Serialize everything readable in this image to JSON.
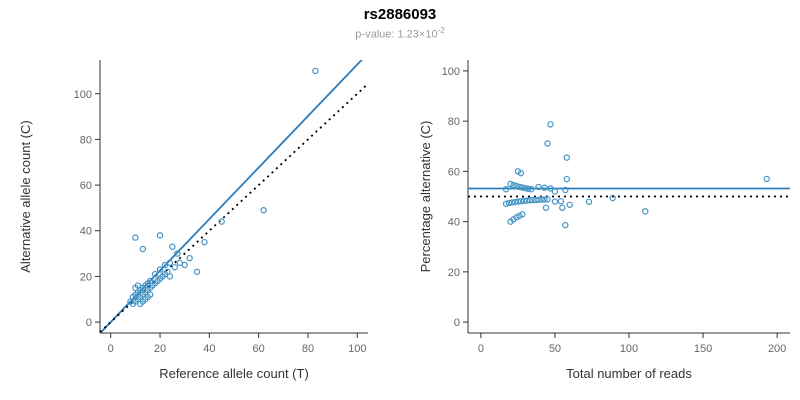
{
  "header": {
    "title": "rs2886093",
    "subtitle_base": "p-value: 1.23×10",
    "subtitle_exponent": "-2"
  },
  "chart_data": [
    {
      "type": "scatter",
      "name": "allele-counts",
      "xlabel": "Reference allele count (T)",
      "ylabel": "Alternative allele count (C)",
      "xlim": [
        0,
        100
      ],
      "ylim": [
        0,
        110
      ],
      "xticks": [
        0,
        20,
        40,
        60,
        80,
        100
      ],
      "yticks": [
        0,
        20,
        40,
        60,
        80,
        100
      ],
      "point_color": "#4393c3",
      "grid": false,
      "legend": "none",
      "points": [
        [
          8,
          9
        ],
        [
          9,
          11
        ],
        [
          9,
          8
        ],
        [
          10,
          9
        ],
        [
          10,
          12
        ],
        [
          10,
          15
        ],
        [
          10,
          37
        ],
        [
          11,
          10
        ],
        [
          11,
          13
        ],
        [
          11,
          16
        ],
        [
          12,
          8
        ],
        [
          12,
          11
        ],
        [
          12,
          14
        ],
        [
          13,
          9
        ],
        [
          13,
          12
        ],
        [
          13,
          15
        ],
        [
          13,
          32
        ],
        [
          14,
          10
        ],
        [
          14,
          13
        ],
        [
          14,
          16
        ],
        [
          15,
          11
        ],
        [
          15,
          14
        ],
        [
          15,
          17
        ],
        [
          16,
          12
        ],
        [
          16,
          15
        ],
        [
          16,
          18
        ],
        [
          17,
          16
        ],
        [
          18,
          17
        ],
        [
          18,
          21
        ],
        [
          19,
          18
        ],
        [
          20,
          19
        ],
        [
          20,
          23
        ],
        [
          20,
          38
        ],
        [
          21,
          20
        ],
        [
          22,
          21
        ],
        [
          22,
          25
        ],
        [
          23,
          22
        ],
        [
          24,
          20
        ],
        [
          24,
          26
        ],
        [
          25,
          33
        ],
        [
          26,
          24
        ],
        [
          27,
          30
        ],
        [
          28,
          26
        ],
        [
          30,
          25
        ],
        [
          32,
          28
        ],
        [
          35,
          22
        ],
        [
          38,
          35
        ],
        [
          45,
          44
        ],
        [
          62,
          49
        ],
        [
          83,
          110
        ]
      ],
      "lines": [
        {
          "name": "regression",
          "style": "solid",
          "color": "#2b7bba",
          "slope": 1.128,
          "intercept": 0
        },
        {
          "name": "identity",
          "style": "dotted",
          "color": "#000000",
          "slope": 1,
          "intercept": 0
        }
      ]
    },
    {
      "type": "scatter",
      "name": "percentage-alternative",
      "xlabel": "Total number of reads",
      "ylabel": "Percentage alternative (C)",
      "xlim": [
        0,
        200
      ],
      "ylim": [
        0,
        100
      ],
      "xticks": [
        0,
        50,
        100,
        150,
        200
      ],
      "yticks": [
        0,
        20,
        40,
        60,
        80,
        100
      ],
      "point_color": "#4393c3",
      "grid": false,
      "legend": "none",
      "points": [
        [
          17,
          52.9
        ],
        [
          20,
          55.0
        ],
        [
          17,
          47.1
        ],
        [
          19,
          47.4
        ],
        [
          22,
          54.5
        ],
        [
          25,
          60.0
        ],
        [
          47,
          78.7
        ],
        [
          21,
          47.6
        ],
        [
          24,
          54.2
        ],
        [
          27,
          59.3
        ],
        [
          20,
          40.0
        ],
        [
          23,
          47.8
        ],
        [
          26,
          53.8
        ],
        [
          22,
          40.9
        ],
        [
          25,
          48.0
        ],
        [
          28,
          53.6
        ],
        [
          45,
          71.1
        ],
        [
          24,
          41.7
        ],
        [
          27,
          48.1
        ],
        [
          30,
          53.3
        ],
        [
          26,
          42.3
        ],
        [
          29,
          48.3
        ],
        [
          32,
          53.1
        ],
        [
          28,
          42.9
        ],
        [
          31,
          48.4
        ],
        [
          34,
          52.9
        ],
        [
          33,
          48.5
        ],
        [
          35,
          48.6
        ],
        [
          39,
          53.8
        ],
        [
          37,
          48.6
        ],
        [
          39,
          48.7
        ],
        [
          43,
          53.5
        ],
        [
          58,
          65.5
        ],
        [
          41,
          48.8
        ],
        [
          43,
          48.8
        ],
        [
          47,
          53.2
        ],
        [
          45,
          48.9
        ],
        [
          44,
          45.5
        ],
        [
          50,
          52.0
        ],
        [
          58,
          56.9
        ],
        [
          50,
          48.0
        ],
        [
          57,
          52.6
        ],
        [
          54,
          48.1
        ],
        [
          55,
          45.5
        ],
        [
          60,
          46.7
        ],
        [
          57,
          38.6
        ],
        [
          73,
          47.9
        ],
        [
          89,
          49.4
        ],
        [
          111,
          44.1
        ],
        [
          193,
          57.0
        ]
      ],
      "lines": [
        {
          "name": "mean-percentage",
          "style": "solid",
          "color": "#2b7bba",
          "slope": 0,
          "intercept": 53.2
        },
        {
          "name": "expected-50",
          "style": "dotted",
          "color": "#000000",
          "slope": 0,
          "intercept": 50
        }
      ]
    }
  ]
}
